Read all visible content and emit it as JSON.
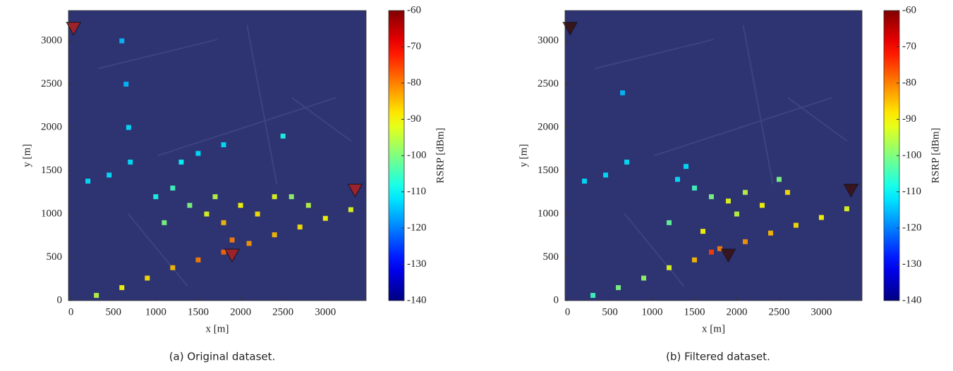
{
  "chart_data": [
    {
      "type": "scatter",
      "xlabel": "x [m]",
      "ylabel": "y [m]",
      "caption": "(a) Original dataset.",
      "xlim": [
        -30,
        3480
      ],
      "ylim": [
        0,
        3350
      ],
      "xticks": [
        0,
        500,
        1000,
        1500,
        2000,
        2500,
        3000
      ],
      "yticks": [
        0,
        500,
        1000,
        1500,
        2000,
        2500,
        3000
      ],
      "colormap": "jet",
      "clim": [
        -140,
        -60
      ],
      "cticks": [
        -140,
        -130,
        -120,
        -110,
        -100,
        -90,
        -80,
        -70,
        -60
      ],
      "clabel": "RSRP [dBm]",
      "x": [
        300,
        600,
        900,
        1200,
        1500,
        1800,
        2100,
        2400,
        2700,
        3000,
        3300,
        1000,
        1200,
        1400,
        1600,
        1800,
        1700,
        2000,
        2200,
        2400,
        1300,
        1500,
        1800,
        2600,
        2800,
        1100,
        1900,
        2500,
        700,
        650,
        600,
        680,
        200,
        450
      ],
      "y": [
        60,
        150,
        260,
        380,
        470,
        560,
        660,
        760,
        850,
        950,
        1050,
        1200,
        1300,
        1100,
        1000,
        900,
        1200,
        1100,
        1000,
        1200,
        1600,
        1700,
        1800,
        1200,
        1100,
        900,
        700,
        1900,
        1600,
        2500,
        3000,
        2000,
        1380,
        1450
      ],
      "values": [
        -95,
        -90,
        -88,
        -85,
        -80,
        -78,
        -82,
        -85,
        -88,
        -90,
        -92,
        -108,
        -105,
        -100,
        -92,
        -85,
        -95,
        -90,
        -88,
        -92,
        -110,
        -112,
        -112,
        -98,
        -95,
        -100,
        -80,
        -108,
        -112,
        -115,
        -115,
        -112,
        -112,
        -112
      ],
      "markers": {
        "x": [
          30,
          3350,
          1900
        ],
        "y": [
          3150,
          1280,
          530
        ],
        "color": "#b02020"
      }
    },
    {
      "type": "scatter",
      "xlabel": "x [m]",
      "ylabel": "y [m]",
      "caption": "(b) Filtered dataset.",
      "xlim": [
        -30,
        3480
      ],
      "ylim": [
        0,
        3350
      ],
      "xticks": [
        0,
        500,
        1000,
        1500,
        2000,
        2500,
        3000
      ],
      "yticks": [
        0,
        500,
        1000,
        1500,
        2000,
        2500,
        3000
      ],
      "colormap": "jet",
      "clim": [
        -140,
        -60
      ],
      "cticks": [
        -140,
        -130,
        -120,
        -110,
        -100,
        -90,
        -80,
        -70,
        -60
      ],
      "clabel": "RSRP [dBm]",
      "x": [
        300,
        600,
        900,
        1200,
        1500,
        1700,
        1800,
        2100,
        2400,
        2700,
        3000,
        3300,
        1300,
        1500,
        1700,
        1900,
        2100,
        2300,
        2600,
        1200,
        1600,
        2000,
        1400,
        2500,
        700,
        650,
        200,
        450
      ],
      "y": [
        60,
        150,
        260,
        380,
        470,
        560,
        600,
        680,
        780,
        870,
        960,
        1060,
        1400,
        1300,
        1200,
        1150,
        1250,
        1100,
        1250,
        900,
        800,
        1000,
        1550,
        1400,
        1600,
        2400,
        1380,
        1450
      ],
      "values": [
        -105,
        -100,
        -98,
        -92,
        -85,
        -75,
        -80,
        -82,
        -85,
        -88,
        -90,
        -92,
        -112,
        -105,
        -100,
        -92,
        -95,
        -90,
        -88,
        -102,
        -90,
        -95,
        -112,
        -100,
        -112,
        -115,
        -112,
        -112
      ],
      "markers": {
        "x": [
          30,
          3350,
          1900
        ],
        "y": [
          3150,
          1280,
          530
        ],
        "color": "#3a1010"
      }
    }
  ]
}
